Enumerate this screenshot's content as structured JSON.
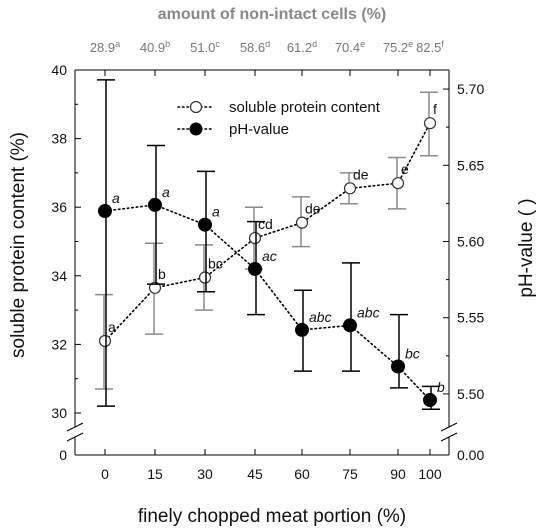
{
  "chart_data": {
    "type": "line",
    "top_axis": {
      "title": "amount of non-intact cells (%)",
      "labels": [
        {
          "value": "28.9",
          "sup": "a"
        },
        {
          "value": "40.9",
          "sup": "b"
        },
        {
          "value": "51.0",
          "sup": "c"
        },
        {
          "value": "58.6",
          "sup": "d"
        },
        {
          "value": "61.2",
          "sup": "d"
        },
        {
          "value": "70.4",
          "sup": "e"
        },
        {
          "value": "75.2",
          "sup": "e"
        },
        {
          "value": "82.5",
          "sup": "f"
        }
      ]
    },
    "x": [
      0,
      15,
      30,
      45,
      60,
      75,
      90,
      100
    ],
    "x_tick_labels": [
      "0",
      "15",
      "30",
      "45",
      "60",
      "75",
      "90",
      "100"
    ],
    "xlabel": "finely chopped meat portion (%)",
    "ylabel_left": "soluble protein content (%)",
    "ylabel_right": "pH-value ( )",
    "y_left_ticks": [
      "30",
      "32",
      "34",
      "36",
      "38",
      "40"
    ],
    "y_left_zero": "0",
    "y_left_range": [
      30,
      40
    ],
    "y_right_ticks": [
      "5.50",
      "5.55",
      "5.60",
      "5.65",
      "5.70"
    ],
    "y_right_zero": "0.00",
    "y_right_range": [
      5.4875,
      5.7125
    ],
    "series": [
      {
        "name": "soluble protein content",
        "axis": "left",
        "marker": "open-circle",
        "values": [
          32.1,
          33.65,
          33.95,
          35.1,
          35.55,
          36.55,
          36.7,
          38.45
        ],
        "err_low": [
          30.7,
          32.3,
          33.0,
          34.2,
          34.85,
          36.1,
          35.95,
          37.5
        ],
        "err_high": [
          33.45,
          34.95,
          34.9,
          36.0,
          36.3,
          37.0,
          37.45,
          39.35
        ],
        "labels": [
          "a",
          "b",
          "bc",
          "cd",
          "de",
          "de",
          "e",
          "f"
        ]
      },
      {
        "name": "pH-value",
        "axis": "right",
        "marker": "filled-circle",
        "values": [
          5.62,
          5.624,
          5.611,
          5.582,
          5.542,
          5.545,
          5.518,
          5.496
        ],
        "err_low": [
          5.492,
          5.572,
          5.567,
          5.552,
          5.515,
          5.515,
          5.504,
          5.49
        ],
        "err_high": [
          5.706,
          5.663,
          5.646,
          5.613,
          5.568,
          5.586,
          5.552,
          5.505
        ],
        "labels": [
          "a",
          "a",
          "a",
          "ac",
          "abc",
          "abc",
          "bc",
          "b"
        ]
      }
    ],
    "legend_position": "top-right",
    "grid": false
  }
}
